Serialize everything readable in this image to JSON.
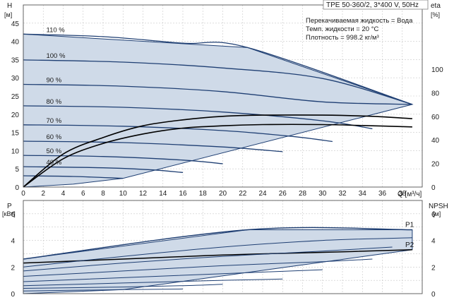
{
  "chart_data": [
    {
      "type": "line",
      "id": "head",
      "title": "TPE 50-360/2, 3*400 V, 50Hz",
      "annotations": [
        "Перекачиваемая жидкость = Вода",
        "Темп. жидкости = 20 °C",
        "Плотность = 998.2 кг/м³"
      ],
      "xlabel": "Q [м³/ч]",
      "ylabel_top": "H",
      "ylabel_unit": "[м]",
      "y2label_top": "eta",
      "y2label_unit": "[%]",
      "xlim": [
        0,
        40
      ],
      "ylim": [
        0,
        50
      ],
      "y2lim": [
        0,
        100
      ],
      "xticks": [
        0,
        2,
        4,
        6,
        8,
        10,
        12,
        14,
        16,
        18,
        20,
        22,
        24,
        26,
        28,
        30,
        32,
        34,
        36,
        38
      ],
      "yticks": [
        0,
        5,
        10,
        15,
        20,
        25,
        30,
        35,
        40,
        45
      ],
      "y2ticks": [
        0,
        20,
        40,
        60,
        80,
        100
      ],
      "grid": true,
      "fill_color": "#cfdae8",
      "curve_color": "#1f3f73",
      "eta_color": "#000000",
      "speed_labels": [
        "110 %",
        "100 %",
        "90 %",
        "80 %",
        "70 %",
        "60 %",
        "50 %",
        "40 %"
      ],
      "series": [
        {
          "label": "110 %",
          "x": [
            0,
            8,
            16,
            22.5,
            39
          ],
          "y": [
            42,
            41.3,
            39.5,
            38.3,
            22.7
          ]
        },
        {
          "label": "100 %",
          "x": [
            0,
            10,
            20,
            30,
            39
          ],
          "y": [
            34.9,
            34.3,
            32.7,
            29.8,
            22.7
          ]
        },
        {
          "label": "90 %",
          "x": [
            0,
            10,
            20,
            30,
            39
          ],
          "y": [
            28.2,
            27.7,
            26.2,
            23.4,
            22.7
          ]
        },
        {
          "label": "80 %",
          "x": [
            0,
            10,
            20,
            30,
            35
          ],
          "y": [
            22.3,
            21.9,
            20.6,
            18.2,
            16.0
          ]
        },
        {
          "label": "70 %",
          "x": [
            0,
            10,
            20,
            27,
            31
          ],
          "y": [
            17.1,
            16.7,
            15.5,
            13.9,
            12.5
          ]
        },
        {
          "label": "60 %",
          "x": [
            0,
            10,
            20,
            26
          ],
          "y": [
            12.6,
            12.2,
            11.0,
            9.7
          ]
        },
        {
          "label": "50 %",
          "x": [
            0,
            8,
            16,
            20
          ],
          "y": [
            8.7,
            8.4,
            7.4,
            6.4
          ]
        },
        {
          "label": "40 %",
          "x": [
            0,
            8,
            13,
            16
          ],
          "y": [
            5.6,
            5.3,
            4.7,
            4.0
          ]
        },
        {
          "label": "",
          "x": [
            0,
            5,
            10
          ],
          "y": [
            3.1,
            2.9,
            2.4
          ]
        }
      ],
      "envelope_x": [
        0,
        22.5,
        39,
        10,
        5,
        0
      ],
      "envelope_y": [
        42,
        38.3,
        22.7,
        2.4,
        0.8,
        0
      ],
      "eta_series": [
        {
          "x": [
            0,
            4,
            8,
            12,
            16,
            20,
            24,
            30,
            35,
            39
          ],
          "y": [
            0,
            28,
            42,
            52,
            57,
            60,
            61,
            61,
            60,
            58
          ]
        },
        {
          "x": [
            0,
            4,
            8,
            12,
            16,
            20,
            24,
            30,
            35,
            39
          ],
          "y": [
            0,
            24,
            37,
            45,
            50,
            52,
            53,
            53,
            52,
            51
          ]
        }
      ]
    },
    {
      "type": "line",
      "id": "power",
      "ylabel_top": "P",
      "ylabel_unit": "[кВт]",
      "y2label_top": "NPSH",
      "y2label_unit": "[м]",
      "xlim": [
        0,
        40
      ],
      "ylim": [
        0,
        7
      ],
      "y2lim": [
        0,
        7
      ],
      "yticks": [
        0,
        2,
        4,
        6
      ],
      "y2ticks": [
        0,
        2,
        4,
        6
      ],
      "grid": true,
      "series_labels": [
        "P1",
        "P2"
      ],
      "series": [
        {
          "label": "P1",
          "x": [
            0,
            22.5,
            39
          ],
          "y": [
            2.6,
            4.8,
            4.8
          ]
        },
        {
          "label": "P2",
          "x": [
            0,
            10,
            20,
            30,
            39
          ],
          "y": [
            2.3,
            2.6,
            2.9,
            3.1,
            3.3
          ]
        },
        {
          "label": "",
          "x": [
            0,
            10,
            20,
            30,
            39
          ],
          "y": [
            2.0,
            2.8,
            3.5,
            4.0,
            4.2
          ]
        },
        {
          "label": "",
          "x": [
            0,
            10,
            20,
            30,
            37
          ],
          "y": [
            1.7,
            2.3,
            2.8,
            3.2,
            3.5
          ]
        },
        {
          "label": "",
          "x": [
            0,
            10,
            20,
            30,
            35
          ],
          "y": [
            1.3,
            1.7,
            2.1,
            2.4,
            2.6
          ]
        },
        {
          "label": "",
          "x": [
            0,
            10,
            20,
            30
          ],
          "y": [
            0.9,
            1.2,
            1.5,
            1.8
          ]
        },
        {
          "label": "",
          "x": [
            0,
            10,
            20,
            26
          ],
          "y": [
            0.6,
            0.8,
            1.0,
            1.1
          ]
        },
        {
          "label": "",
          "x": [
            0,
            10,
            16,
            20
          ],
          "y": [
            0.4,
            0.5,
            0.6,
            0.7
          ]
        },
        {
          "label": "",
          "x": [
            0,
            10,
            16
          ],
          "y": [
            0.2,
            0.3,
            0.35
          ]
        }
      ],
      "envelope_x": [
        0,
        22.5,
        39,
        39,
        10,
        0
      ],
      "envelope_y": [
        2.6,
        4.8,
        4.8,
        3.3,
        0.3,
        0
      ]
    }
  ]
}
